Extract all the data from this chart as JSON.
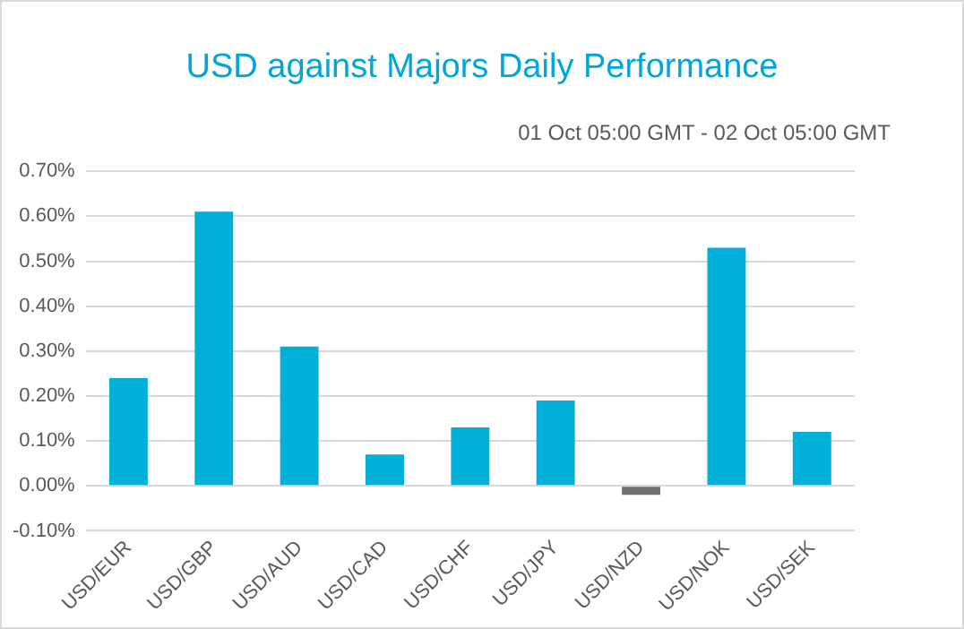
{
  "chart_data": {
    "type": "bar",
    "title": "USD against Majors Daily Performance",
    "subtitle": "01 Oct 05:00 GMT -  02 Oct  05:00 GMT",
    "categories": [
      "USD/EUR",
      "USD/GBP",
      "USD/AUD",
      "USD/CAD",
      "USD/CHF",
      "USD/JPY",
      "USD/NZD",
      "USD/NOK",
      "USD/SEK"
    ],
    "values": [
      0.24,
      0.61,
      0.31,
      0.07,
      0.13,
      0.19,
      -0.02,
      0.53,
      0.12
    ],
    "colors": [
      "#00b0d8",
      "#00b0d8",
      "#00b0d8",
      "#00b0d8",
      "#00b0d8",
      "#00b0d8",
      "#707070",
      "#00b0d8",
      "#00b0d8"
    ],
    "ylim": [
      -0.1,
      0.7
    ],
    "yticks": [
      {
        "value": -0.1,
        "label": "-0.10%"
      },
      {
        "value": 0,
        "label": "0.00%"
      },
      {
        "value": 0.1,
        "label": "0.10%"
      },
      {
        "value": 0.2,
        "label": "0.20%"
      },
      {
        "value": 0.3,
        "label": "0.30%"
      },
      {
        "value": 0.4,
        "label": "0.40%"
      },
      {
        "value": 0.5,
        "label": "0.50%"
      },
      {
        "value": 0.6,
        "label": "0.60%"
      },
      {
        "value": 0.7,
        "label": "0.70%"
      }
    ],
    "grid": "y"
  }
}
